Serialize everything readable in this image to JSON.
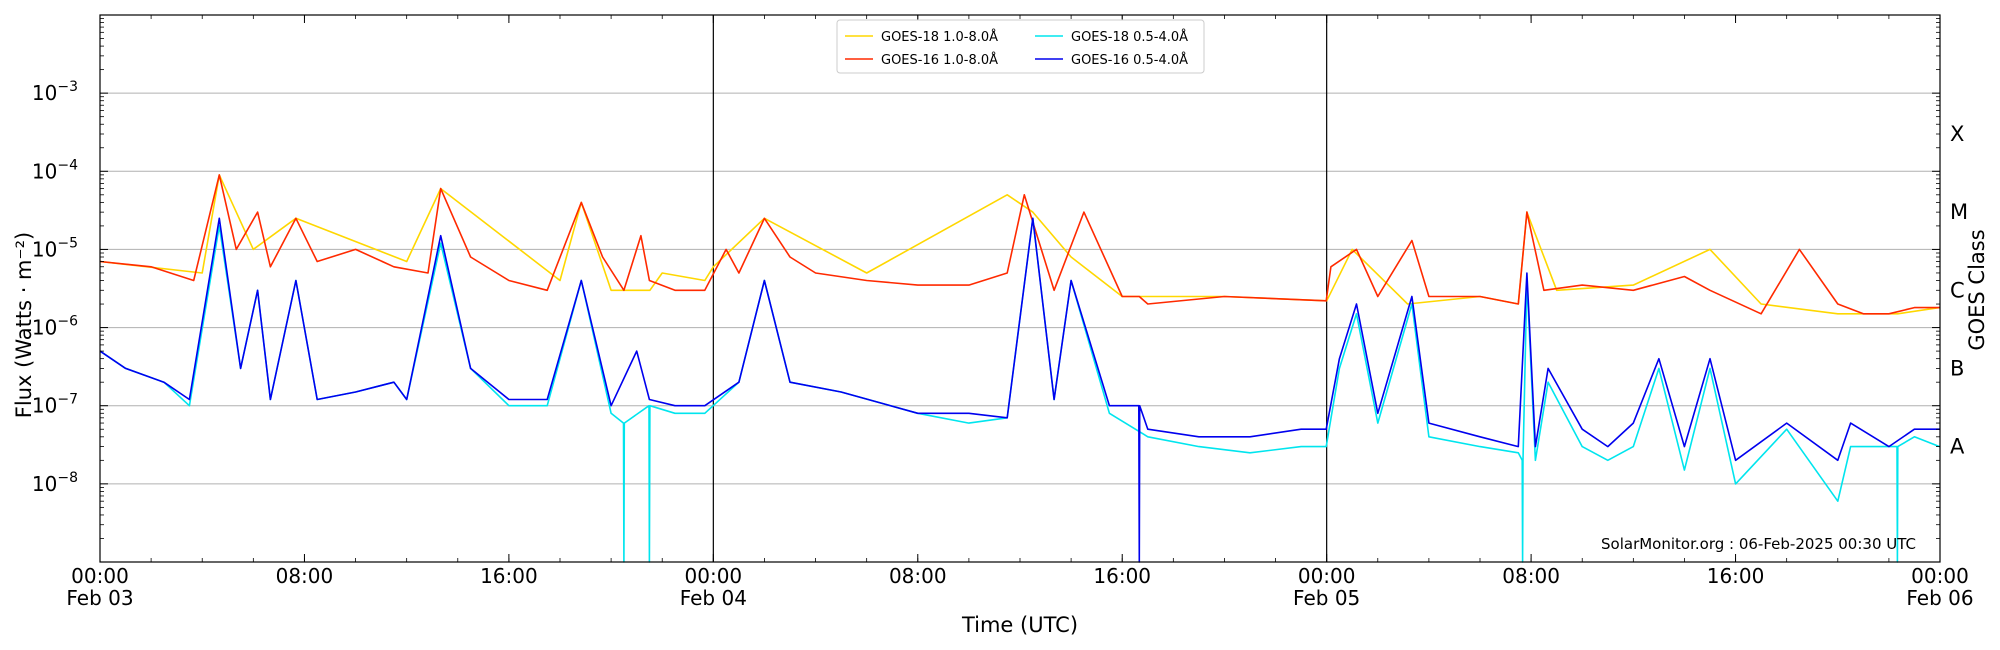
{
  "chart_data": {
    "type": "line",
    "y_scale": "log",
    "ylim": [
      1e-09,
      0.01
    ],
    "xlim": [
      "2025-02-03 00:00",
      "2025-02-06 00:00"
    ],
    "ylabel": "Flux (Watts · m⁻²)",
    "xlabel": "Time (UTC)",
    "right_axis_label": "GOES Class",
    "grid": "horizontal",
    "legend_placement": "top-center",
    "credit": "SolarMonitor.org : 06-Feb-2025 00:30 UTC",
    "y_ticks": [
      {
        "value": 1e-08,
        "base": "10",
        "exp": "−8"
      },
      {
        "value": 1e-07,
        "base": "10",
        "exp": "−7"
      },
      {
        "value": 1e-06,
        "base": "10",
        "exp": "−6"
      },
      {
        "value": 1e-05,
        "base": "10",
        "exp": "−5"
      },
      {
        "value": 0.0001,
        "base": "10",
        "exp": "−4"
      },
      {
        "value": 0.001,
        "base": "10",
        "exp": "−3"
      }
    ],
    "x_ticks": [
      {
        "time": "2025-02-03 00:00",
        "line1": "00:00",
        "line2": "Feb 03"
      },
      {
        "time": "2025-02-03 08:00",
        "line1": "08:00",
        "line2": ""
      },
      {
        "time": "2025-02-03 16:00",
        "line1": "16:00",
        "line2": ""
      },
      {
        "time": "2025-02-04 00:00",
        "line1": "00:00",
        "line2": "Feb 04"
      },
      {
        "time": "2025-02-04 08:00",
        "line1": "08:00",
        "line2": ""
      },
      {
        "time": "2025-02-04 16:00",
        "line1": "16:00",
        "line2": ""
      },
      {
        "time": "2025-02-05 00:00",
        "line1": "00:00",
        "line2": "Feb 05"
      },
      {
        "time": "2025-02-05 08:00",
        "line1": "08:00",
        "line2": ""
      },
      {
        "time": "2025-02-05 16:00",
        "line1": "16:00",
        "line2": ""
      },
      {
        "time": "2025-02-06 00:00",
        "line1": "00:00",
        "line2": "Feb 06"
      }
    ],
    "day_boundaries": [
      "2025-02-04 00:00",
      "2025-02-05 00:00"
    ],
    "goes_classes": [
      {
        "label": "A",
        "value": 3e-08
      },
      {
        "label": "B",
        "value": 3e-07
      },
      {
        "label": "C",
        "value": 3e-06
      },
      {
        "label": "M",
        "value": 3e-05
      },
      {
        "label": "X",
        "value": 0.0003
      }
    ],
    "series": [
      {
        "name": "GOES-18 1.0-8.0Å",
        "color": "#ffd700",
        "x": [
          "2025-02-03 00:00",
          "2025-02-03 04:00",
          "2025-02-03 04:40",
          "2025-02-03 06:00",
          "2025-02-03 07:40",
          "2025-02-03 12:00",
          "2025-02-03 13:20",
          "2025-02-03 18:00",
          "2025-02-03 18:50",
          "2025-02-03 20:00",
          "2025-02-03 20:29",
          "2025-02-03 20:30",
          "2025-02-03 20:31",
          "2025-02-03 21:00",
          "2025-02-03 21:29",
          "2025-02-03 21:30",
          "2025-02-03 21:31",
          "2025-02-03 22:00",
          "2025-02-03 23:40",
          "2025-02-04 00:00",
          "2025-02-04 02:00",
          "2025-02-04 06:00",
          "2025-02-04 11:30",
          "2025-02-04 12:30",
          "2025-02-04 14:00",
          "2025-02-04 16:00",
          "2025-02-04 16:30",
          "2025-02-04 20:00",
          "2025-02-05 00:00",
          "2025-02-05 01:00",
          "2025-02-05 03:10",
          "2025-02-05 06:00",
          "2025-02-05 07:30",
          "2025-02-05 07:50",
          "2025-02-05 09:00",
          "2025-02-05 12:00",
          "2025-02-05 15:00",
          "2025-02-05 17:00",
          "2025-02-05 20:00",
          "2025-02-05 22:19",
          "2025-02-05 22:20",
          "2025-02-05 22:21",
          "2025-02-05 23:59",
          "2025-02-06 00:00"
        ],
        "y": [
          7e-06,
          5e-06,
          9e-05,
          1e-05,
          2.5e-05,
          7e-06,
          6e-05,
          4e-06,
          4e-05,
          3e-06,
          3e-06,
          3e-06,
          3e-06,
          3e-06,
          3e-06,
          3e-06,
          3e-06,
          5e-06,
          4e-06,
          6e-06,
          2.5e-05,
          5e-06,
          5e-05,
          3e-05,
          8e-06,
          2.5e-06,
          2.5e-06,
          2.5e-06,
          2.2e-06,
          1e-05,
          2e-06,
          2.5e-06,
          2e-06,
          3e-05,
          3e-06,
          3.5e-06,
          1e-05,
          2e-06,
          1.5e-06,
          1.5e-06,
          1.5e-06,
          1.5e-06,
          1.8e-06,
          1.8e-06
        ]
      },
      {
        "name": "GOES-16 1.0-8.0Å",
        "color": "#ff2a00",
        "x": [
          "2025-02-03 00:00",
          "2025-02-03 02:00",
          "2025-02-03 03:40",
          "2025-02-03 04:40",
          "2025-02-03 05:20",
          "2025-02-03 06:10",
          "2025-02-03 06:40",
          "2025-02-03 07:40",
          "2025-02-03 08:30",
          "2025-02-03 10:00",
          "2025-02-03 11:30",
          "2025-02-03 12:50",
          "2025-02-03 13:20",
          "2025-02-03 14:30",
          "2025-02-03 16:00",
          "2025-02-03 17:30",
          "2025-02-03 18:50",
          "2025-02-03 19:40",
          "2025-02-03 20:30",
          "2025-02-03 21:10",
          "2025-02-03 21:30",
          "2025-02-03 22:30",
          "2025-02-03 23:40",
          "2025-02-04 00:30",
          "2025-02-04 01:00",
          "2025-02-04 02:00",
          "2025-02-04 03:00",
          "2025-02-04 04:00",
          "2025-02-04 06:00",
          "2025-02-04 08:00",
          "2025-02-04 10:00",
          "2025-02-04 11:30",
          "2025-02-04 12:10",
          "2025-02-04 13:20",
          "2025-02-04 14:30",
          "2025-02-04 16:00",
          "2025-02-04 16:30",
          "2025-02-04 16:40",
          "2025-02-04 17:00",
          "2025-02-04 20:00",
          "2025-02-04 23:59",
          "2025-02-05 00:10",
          "2025-02-05 01:10",
          "2025-02-05 02:00",
          "2025-02-05 03:20",
          "2025-02-05 04:00",
          "2025-02-05 06:00",
          "2025-02-05 07:30",
          "2025-02-05 07:50",
          "2025-02-05 08:30",
          "2025-02-05 10:00",
          "2025-02-05 12:00",
          "2025-02-05 14:00",
          "2025-02-05 15:00",
          "2025-02-05 17:00",
          "2025-02-05 18:30",
          "2025-02-05 20:00",
          "2025-02-05 21:00",
          "2025-02-05 22:00",
          "2025-02-05 23:00",
          "2025-02-06 00:00"
        ],
        "y": [
          7e-06,
          6e-06,
          4e-06,
          9e-05,
          1e-05,
          3e-05,
          6e-06,
          2.5e-05,
          7e-06,
          1e-05,
          6e-06,
          5e-06,
          6e-05,
          8e-06,
          4e-06,
          3e-06,
          4e-05,
          8e-06,
          3e-06,
          1.5e-05,
          4e-06,
          3e-06,
          3e-06,
          1e-05,
          5e-06,
          2.5e-05,
          8e-06,
          5e-06,
          4e-06,
          3.5e-06,
          3.5e-06,
          5e-06,
          5e-05,
          3e-06,
          3e-05,
          2.5e-06,
          2.5e-06,
          2.5e-06,
          2e-06,
          2.5e-06,
          2.2e-06,
          6e-06,
          1e-05,
          2.5e-06,
          1.3e-05,
          2.5e-06,
          2.5e-06,
          2e-06,
          3e-05,
          3e-06,
          3.5e-06,
          3e-06,
          4.5e-06,
          3e-06,
          1.5e-06,
          1e-05,
          2e-06,
          1.5e-06,
          1.5e-06,
          1.8e-06,
          1.8e-06
        ]
      },
      {
        "name": "GOES-18 0.5-4.0Å",
        "color": "#00e5ee",
        "x": [
          "2025-02-03 00:00",
          "2025-02-03 01:00",
          "2025-02-03 02:30",
          "2025-02-03 03:30",
          "2025-02-03 04:40",
          "2025-02-03 05:30",
          "2025-02-03 06:10",
          "2025-02-03 06:40",
          "2025-02-03 07:40",
          "2025-02-03 08:30",
          "2025-02-03 10:00",
          "2025-02-03 11:30",
          "2025-02-03 12:00",
          "2025-02-03 13:20",
          "2025-02-03 14:30",
          "2025-02-03 16:00",
          "2025-02-03 17:30",
          "2025-02-03 18:50",
          "2025-02-03 20:00",
          "2025-02-03 20:29",
          "2025-02-03 20:30",
          "2025-02-03 20:31",
          "2025-02-03 21:29",
          "2025-02-03 21:30",
          "2025-02-03 21:31",
          "2025-02-03 22:30",
          "2025-02-03 23:40",
          "2025-02-04 01:00",
          "2025-02-04 02:00",
          "2025-02-04 03:00",
          "2025-02-04 05:00",
          "2025-02-04 08:00",
          "2025-02-04 10:00",
          "2025-02-04 11:30",
          "2025-02-04 12:30",
          "2025-02-04 13:20",
          "2025-02-04 14:00",
          "2025-02-04 15:30",
          "2025-02-04 17:00",
          "2025-02-04 19:00",
          "2025-02-04 21:00",
          "2025-02-04 23:00",
          "2025-02-04 23:59",
          "2025-02-05 00:30",
          "2025-02-05 01:10",
          "2025-02-05 02:00",
          "2025-02-05 03:20",
          "2025-02-05 04:00",
          "2025-02-05 06:00",
          "2025-02-05 07:30",
          "2025-02-05 07:39",
          "2025-02-05 07:40",
          "2025-02-05 07:41",
          "2025-02-05 07:50",
          "2025-02-05 08:10",
          "2025-02-05 08:40",
          "2025-02-05 10:00",
          "2025-02-05 11:00",
          "2025-02-05 12:00",
          "2025-02-05 13:00",
          "2025-02-05 14:00",
          "2025-02-05 15:00",
          "2025-02-05 16:00",
          "2025-02-05 18:00",
          "2025-02-05 20:00",
          "2025-02-05 20:30",
          "2025-02-05 22:19",
          "2025-02-05 22:20",
          "2025-02-05 22:21",
          "2025-02-05 23:00",
          "2025-02-05 23:59",
          "2025-02-06 00:00"
        ],
        "y": [
          5e-07,
          3e-07,
          2e-07,
          1e-07,
          2e-05,
          3e-07,
          3e-06,
          1.2e-07,
          4e-06,
          1.2e-07,
          1.5e-07,
          2e-07,
          1.2e-07,
          1.2e-05,
          3e-07,
          1e-07,
          1e-07,
          4e-06,
          8e-08,
          6e-08,
          1e-09,
          6e-08,
          1e-07,
          1e-09,
          1e-07,
          8e-08,
          8e-08,
          2e-07,
          4e-06,
          2e-07,
          1.5e-07,
          8e-08,
          6e-08,
          7e-08,
          2.5e-05,
          1.2e-07,
          4e-06,
          8e-08,
          4e-08,
          3e-08,
          2.5e-08,
          3e-08,
          3e-08,
          3e-07,
          1.5e-06,
          6e-08,
          2e-06,
          4e-08,
          3e-08,
          2.5e-08,
          2e-08,
          1e-09,
          2e-08,
          4e-06,
          2e-08,
          2e-07,
          3e-08,
          2e-08,
          3e-08,
          3e-07,
          1.5e-08,
          3e-07,
          1e-08,
          5e-08,
          6e-09,
          3e-08,
          3e-08,
          1e-09,
          3e-08,
          4e-08,
          3e-08,
          3e-08
        ]
      },
      {
        "name": "GOES-16 0.5-4.0Å",
        "color": "#0000ee",
        "x": [
          "2025-02-03 00:00",
          "2025-02-03 01:00",
          "2025-02-03 02:30",
          "2025-02-03 03:30",
          "2025-02-03 04:40",
          "2025-02-03 05:30",
          "2025-02-03 06:10",
          "2025-02-03 06:40",
          "2025-02-03 07:40",
          "2025-02-03 08:30",
          "2025-02-03 10:00",
          "2025-02-03 11:30",
          "2025-02-03 12:00",
          "2025-02-03 13:20",
          "2025-02-03 14:30",
          "2025-02-03 16:00",
          "2025-02-03 17:30",
          "2025-02-03 18:50",
          "2025-02-03 20:00",
          "2025-02-03 21:00",
          "2025-02-03 21:30",
          "2025-02-03 22:30",
          "2025-02-03 23:40",
          "2025-02-04 01:00",
          "2025-02-04 02:00",
          "2025-02-04 03:00",
          "2025-02-04 05:00",
          "2025-02-04 08:00",
          "2025-02-04 10:00",
          "2025-02-04 11:30",
          "2025-02-04 12:30",
          "2025-02-04 13:20",
          "2025-02-04 14:00",
          "2025-02-04 15:30",
          "2025-02-04 16:30",
          "2025-02-04 16:39",
          "2025-02-04 16:40",
          "2025-02-04 16:41",
          "2025-02-04 17:00",
          "2025-02-04 19:00",
          "2025-02-04 21:00",
          "2025-02-04 23:00",
          "2025-02-04 23:59",
          "2025-02-05 00:30",
          "2025-02-05 01:10",
          "2025-02-05 02:00",
          "2025-02-05 03:20",
          "2025-02-05 04:00",
          "2025-02-05 06:00",
          "2025-02-05 07:30",
          "2025-02-05 07:50",
          "2025-02-05 08:10",
          "2025-02-05 08:40",
          "2025-02-05 10:00",
          "2025-02-05 11:00",
          "2025-02-05 12:00",
          "2025-02-05 13:00",
          "2025-02-05 14:00",
          "2025-02-05 15:00",
          "2025-02-05 16:00",
          "2025-02-05 18:00",
          "2025-02-05 20:00",
          "2025-02-05 20:30",
          "2025-02-05 22:00",
          "2025-02-05 23:00",
          "2025-02-05 23:59",
          "2025-02-06 00:00"
        ],
        "y": [
          5e-07,
          3e-07,
          2e-07,
          1.2e-07,
          2.5e-05,
          3e-07,
          3e-06,
          1.2e-07,
          4e-06,
          1.2e-07,
          1.5e-07,
          2e-07,
          1.2e-07,
          1.5e-05,
          3e-07,
          1.2e-07,
          1.2e-07,
          4e-06,
          1e-07,
          5e-07,
          1.2e-07,
          1e-07,
          1e-07,
          2e-07,
          4e-06,
          2e-07,
          1.5e-07,
          8e-08,
          8e-08,
          7e-08,
          2.5e-05,
          1.2e-07,
          4e-06,
          1e-07,
          1e-07,
          1e-07,
          1e-09,
          1e-07,
          5e-08,
          4e-08,
          4e-08,
          5e-08,
          5e-08,
          4e-07,
          2e-06,
          8e-08,
          2.5e-06,
          6e-08,
          4e-08,
          3e-08,
          5e-06,
          3e-08,
          3e-07,
          5e-08,
          3e-08,
          6e-08,
          4e-07,
          3e-08,
          4e-07,
          2e-08,
          6e-08,
          2e-08,
          6e-08,
          3e-08,
          5e-08,
          5e-08,
          5e-08
        ]
      }
    ]
  },
  "legend": {
    "items": [
      {
        "label": "GOES-18 1.0-8.0Å",
        "color": "#ffd700"
      },
      {
        "label": "GOES-16 1.0-8.0Å",
        "color": "#ff2a00"
      },
      {
        "label": "GOES-18 0.5-4.0Å",
        "color": "#00e5ee"
      },
      {
        "label": "GOES-16 0.5-4.0Å",
        "color": "#0000ee"
      }
    ]
  }
}
